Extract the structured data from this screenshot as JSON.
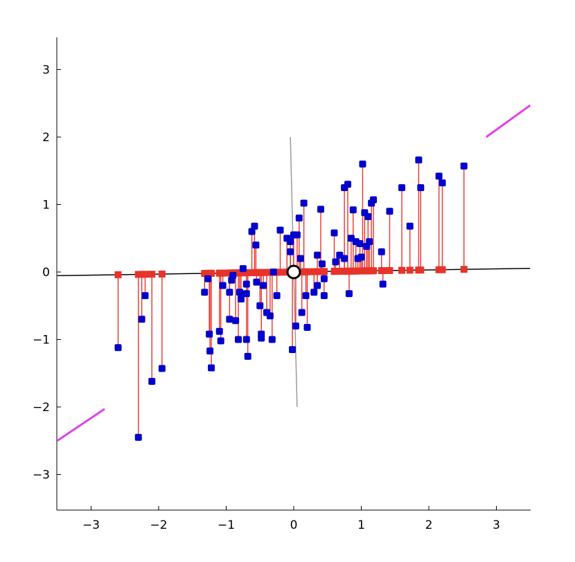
{
  "chart_data": {
    "type": "scatter",
    "title": "",
    "xlabel": "",
    "ylabel": "",
    "xlim": [
      -3.5,
      3.5
    ],
    "ylim": [
      -3.5,
      3.5
    ],
    "grid": false,
    "x_ticks": [
      -3,
      -2,
      -1,
      0,
      1,
      2,
      3
    ],
    "y_ticks": [
      -3,
      -2,
      -1,
      0,
      1,
      2,
      3
    ],
    "x_tick_labels": [
      "−3",
      "−2",
      "−1",
      "0",
      "1",
      "2",
      "3"
    ],
    "y_tick_labels": [
      "−3",
      "−2",
      "−1",
      "0",
      "1",
      "2",
      "3"
    ],
    "colors": {
      "points": "#0000cc",
      "projections": "#e8332a",
      "projection_lines": "#e8332a",
      "principal_axis": "#000000",
      "minor_axis": "#999999",
      "asymptote": "#e040ee",
      "mean_marker": "#000000"
    },
    "principal_axis": {
      "slope": 0.0155
    },
    "minor_axis": {
      "x": [
        0.05,
        -0.05
      ],
      "y": [
        -2.0,
        2.0
      ]
    },
    "asymptote_segments": [
      {
        "x": [
          -3.5,
          -2.8
        ],
        "y": [
          -2.5,
          -2.03
        ]
      },
      {
        "x": [
          2.85,
          3.5
        ],
        "y": [
          2.0,
          2.47
        ]
      }
    ],
    "mean": {
      "x": 0.0,
      "y": 0.0
    },
    "points": [
      [
        -2.6,
        -1.12
      ],
      [
        -2.3,
        -2.45
      ],
      [
        -2.25,
        -0.7
      ],
      [
        -2.2,
        -0.35
      ],
      [
        -2.1,
        -1.62
      ],
      [
        -1.95,
        -1.43
      ],
      [
        -1.32,
        -0.3
      ],
      [
        -1.27,
        -0.1
      ],
      [
        -1.25,
        -0.92
      ],
      [
        -1.24,
        -1.17
      ],
      [
        -1.22,
        -1.42
      ],
      [
        -1.1,
        -0.88
      ],
      [
        -1.08,
        -1.02
      ],
      [
        -1.05,
        -0.2
      ],
      [
        -0.95,
        -0.3
      ],
      [
        -0.95,
        -0.7
      ],
      [
        -0.92,
        -0.12
      ],
      [
        -0.9,
        -0.05
      ],
      [
        -0.86,
        -0.72
      ],
      [
        -0.82,
        -1.0
      ],
      [
        -0.8,
        -0.3
      ],
      [
        -0.78,
        -0.4
      ],
      [
        -0.75,
        0.05
      ],
      [
        -0.7,
        -0.18
      ],
      [
        -0.7,
        -0.32
      ],
      [
        -0.7,
        -1.0
      ],
      [
        -0.68,
        -1.25
      ],
      [
        -0.62,
        0.6
      ],
      [
        -0.58,
        0.68
      ],
      [
        -0.56,
        0.4
      ],
      [
        -0.55,
        -0.15
      ],
      [
        -0.5,
        -0.5
      ],
      [
        -0.48,
        -0.92
      ],
      [
        -0.48,
        -0.98
      ],
      [
        -0.45,
        -0.2
      ],
      [
        -0.4,
        -0.6
      ],
      [
        -0.35,
        -0.65
      ],
      [
        -0.32,
        -1.0
      ],
      [
        -0.3,
        0.0
      ],
      [
        -0.25,
        -0.35
      ],
      [
        -0.2,
        0.62
      ],
      [
        -0.1,
        0.5
      ],
      [
        -0.05,
        0.45
      ],
      [
        -0.05,
        0.3
      ],
      [
        0.0,
        0.55
      ],
      [
        -0.02,
        -1.15
      ],
      [
        0.03,
        -0.8
      ],
      [
        0.05,
        0.55
      ],
      [
        0.08,
        0.8
      ],
      [
        0.1,
        0.2
      ],
      [
        0.12,
        -0.6
      ],
      [
        0.15,
        1.02
      ],
      [
        0.18,
        -0.35
      ],
      [
        0.2,
        -0.82
      ],
      [
        0.3,
        -0.3
      ],
      [
        0.35,
        0.25
      ],
      [
        0.35,
        -0.2
      ],
      [
        0.4,
        0.93
      ],
      [
        0.42,
        0.12
      ],
      [
        0.45,
        -0.1
      ],
      [
        0.45,
        -0.35
      ],
      [
        0.6,
        0.58
      ],
      [
        0.62,
        0.15
      ],
      [
        0.68,
        0.25
      ],
      [
        0.75,
        0.2
      ],
      [
        0.75,
        1.25
      ],
      [
        0.8,
        1.3
      ],
      [
        0.82,
        -0.32
      ],
      [
        0.85,
        0.5
      ],
      [
        0.88,
        0.92
      ],
      [
        0.92,
        0.45
      ],
      [
        0.95,
        0.2
      ],
      [
        0.98,
        0.42
      ],
      [
        1.0,
        0.22
      ],
      [
        1.02,
        1.6
      ],
      [
        1.05,
        0.88
      ],
      [
        1.08,
        0.38
      ],
      [
        1.1,
        0.82
      ],
      [
        1.12,
        0.45
      ],
      [
        1.15,
        1.02
      ],
      [
        1.18,
        1.07
      ],
      [
        1.3,
        0.3
      ],
      [
        1.32,
        -0.18
      ],
      [
        1.42,
        0.9
      ],
      [
        1.6,
        1.25
      ],
      [
        1.72,
        0.68
      ],
      [
        1.85,
        1.66
      ],
      [
        1.88,
        1.25
      ],
      [
        2.15,
        1.42
      ],
      [
        2.2,
        1.32
      ],
      [
        2.52,
        1.57
      ]
    ]
  }
}
